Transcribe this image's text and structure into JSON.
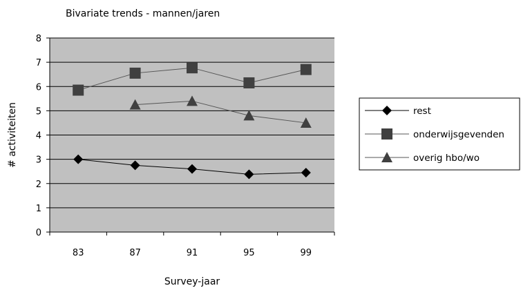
{
  "chart_data": {
    "type": "line",
    "title": "Bivariate trends - mannen/jaren",
    "xlabel": "Survey-jaar",
    "ylabel": "# activiteiten",
    "categories": [
      "83",
      "87",
      "91",
      "95",
      "99"
    ],
    "ylim": [
      0,
      8
    ],
    "yticks": [
      0,
      1,
      2,
      3,
      4,
      5,
      6,
      7,
      8
    ],
    "grid": true,
    "legend_position": "right",
    "plot_background": "#c0c0c0",
    "series": [
      {
        "name": "rest",
        "marker": "diamond",
        "color": "#000000",
        "values": [
          3.0,
          2.75,
          2.6,
          2.38,
          2.45
        ]
      },
      {
        "name": "onderwijsgevenden",
        "marker": "square",
        "color": "#404040",
        "values": [
          5.85,
          6.55,
          6.77,
          6.15,
          6.7
        ]
      },
      {
        "name": "overig hbo/wo",
        "marker": "triangle",
        "color": "#404040",
        "values": [
          null,
          5.25,
          5.4,
          4.8,
          4.5
        ]
      }
    ]
  }
}
